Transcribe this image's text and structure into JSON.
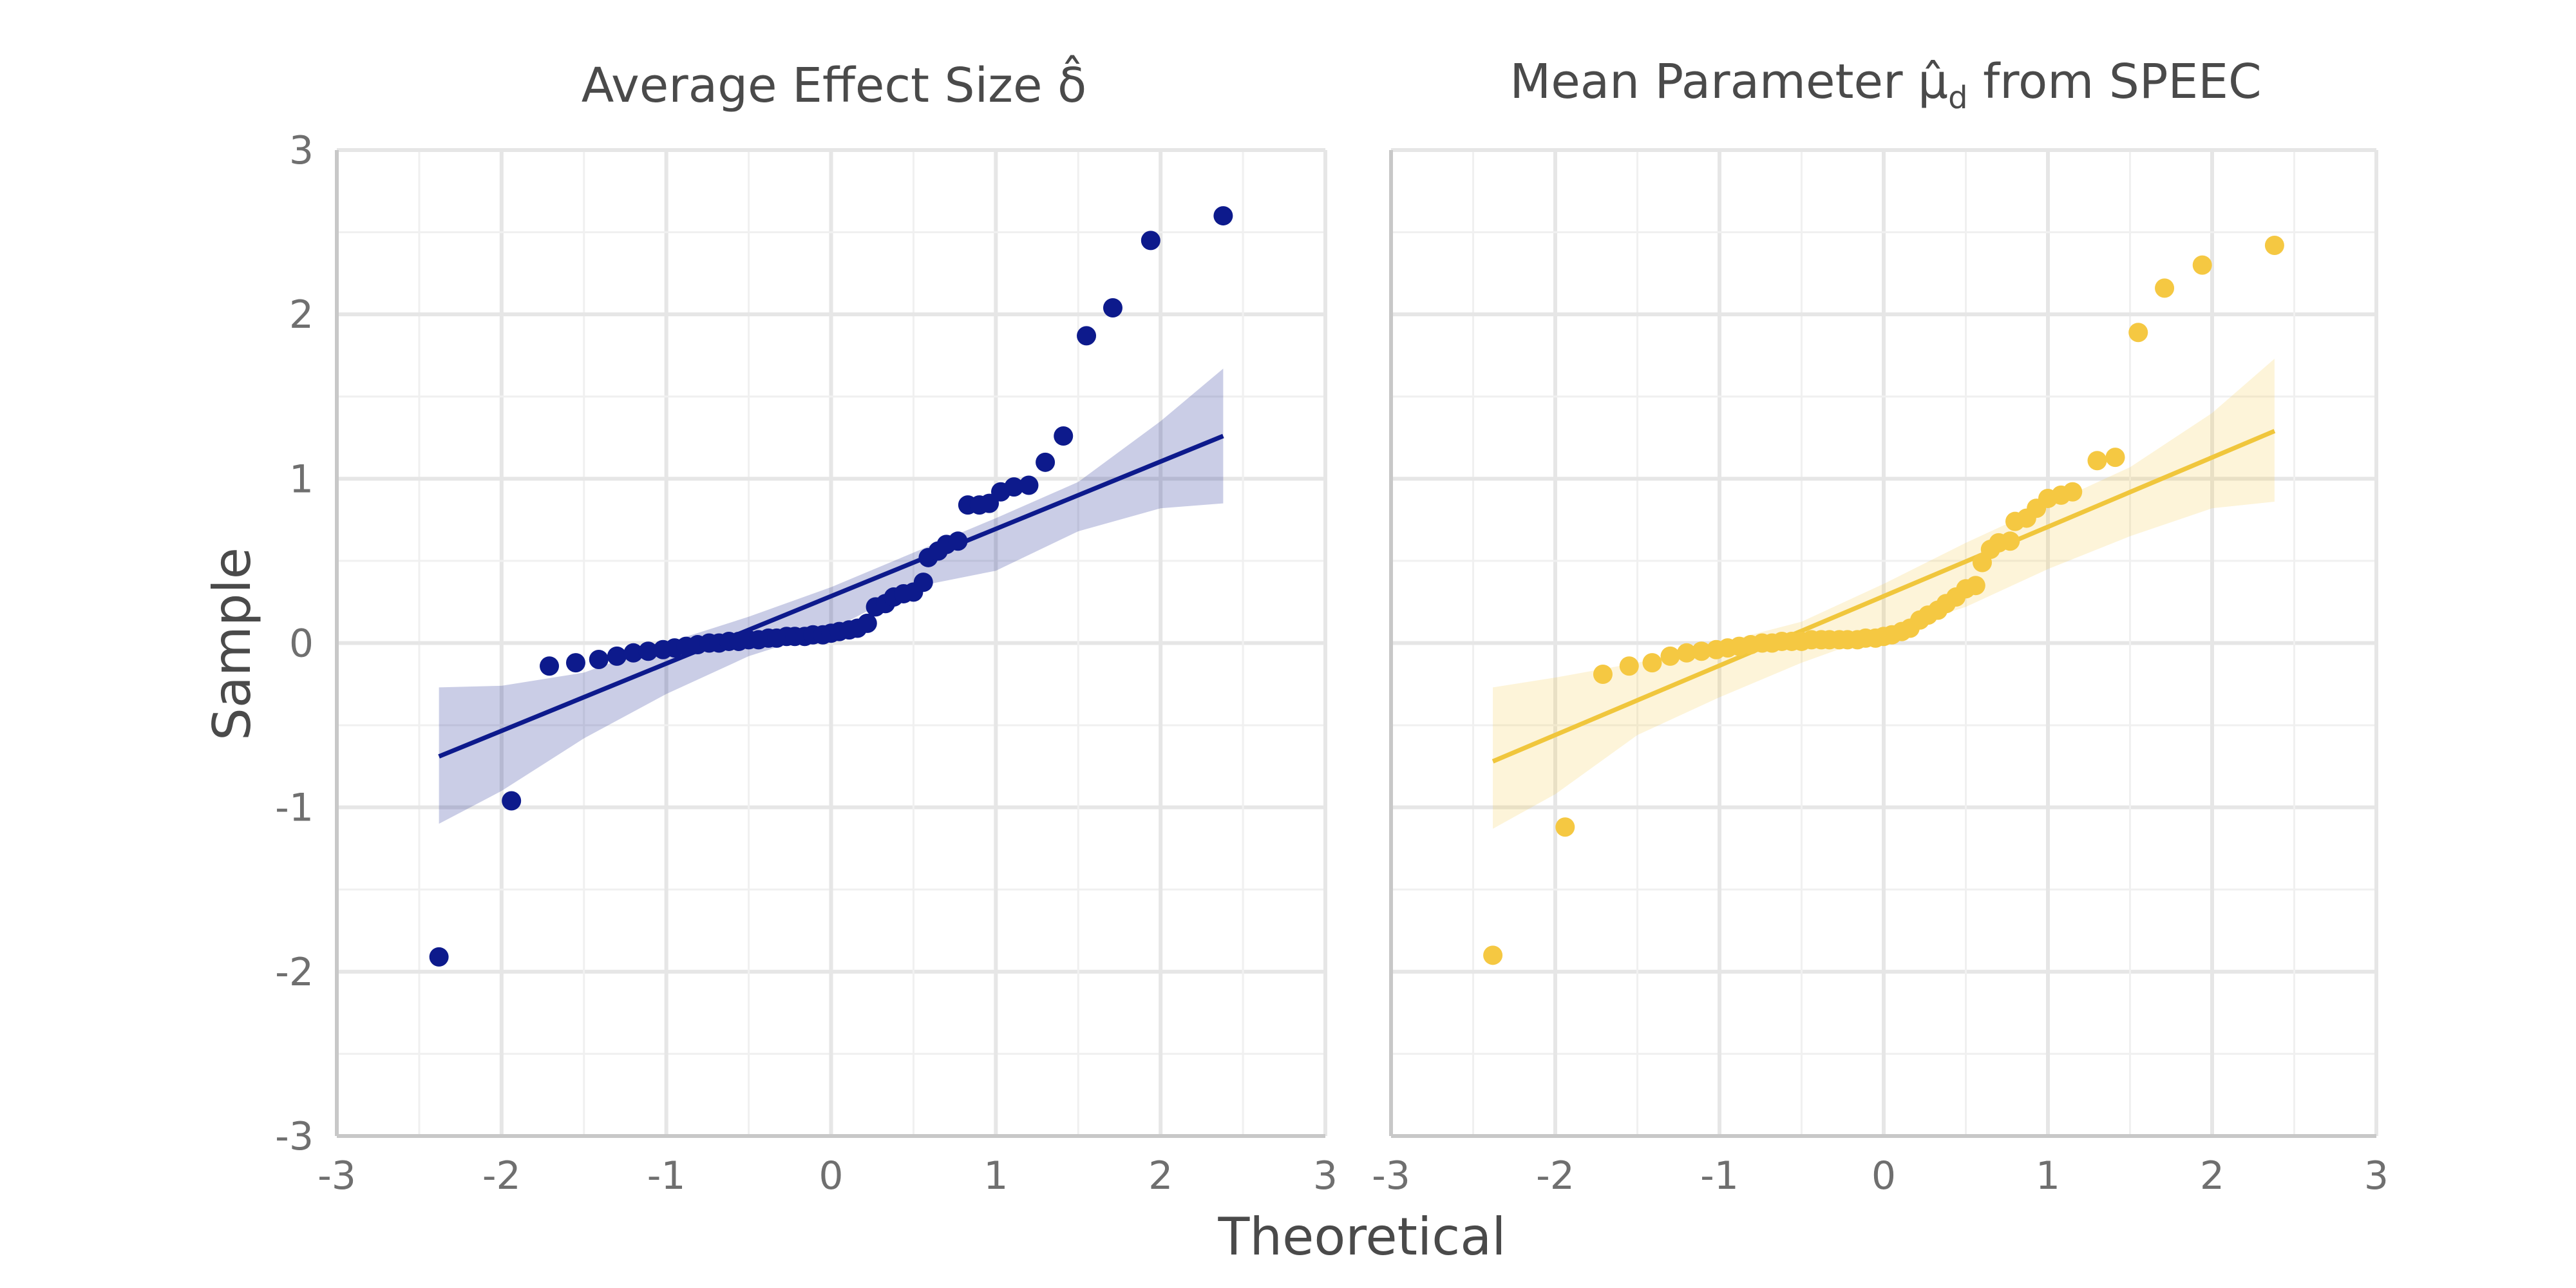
{
  "chart_data": [
    {
      "type": "scatter",
      "title": "Average Effect Size δ̂",
      "xlabel": "Theoretical",
      "ylabel": "Sample",
      "xlim": [
        -3,
        3
      ],
      "ylim": [
        -3,
        3
      ],
      "xticks": [
        "-3",
        "-2",
        "-1",
        "0",
        "1",
        "2",
        "3"
      ],
      "yticks": [
        "3",
        "2",
        "1",
        "0",
        "-1",
        "-2",
        "-3"
      ],
      "grid": true,
      "point_color": "#0d1a8c",
      "band_color": "#0d1a8c",
      "line_color": "#0d1a8c",
      "points": [
        {
          "x": -2.38,
          "y": -1.91
        },
        {
          "x": -1.94,
          "y": -0.96
        },
        {
          "x": -1.71,
          "y": -0.14
        },
        {
          "x": -1.55,
          "y": -0.12
        },
        {
          "x": -1.41,
          "y": -0.1
        },
        {
          "x": -1.3,
          "y": -0.08
        },
        {
          "x": -1.2,
          "y": -0.06
        },
        {
          "x": -1.11,
          "y": -0.05
        },
        {
          "x": -1.02,
          "y": -0.04
        },
        {
          "x": -0.95,
          "y": -0.03
        },
        {
          "x": -0.88,
          "y": -0.02
        },
        {
          "x": -0.81,
          "y": -0.01
        },
        {
          "x": -0.74,
          "y": 0.0
        },
        {
          "x": -0.68,
          "y": 0.0
        },
        {
          "x": -0.62,
          "y": 0.01
        },
        {
          "x": -0.56,
          "y": 0.01
        },
        {
          "x": -0.5,
          "y": 0.02
        },
        {
          "x": -0.44,
          "y": 0.02
        },
        {
          "x": -0.38,
          "y": 0.03
        },
        {
          "x": -0.33,
          "y": 0.03
        },
        {
          "x": -0.27,
          "y": 0.04
        },
        {
          "x": -0.22,
          "y": 0.04
        },
        {
          "x": -0.16,
          "y": 0.04
        },
        {
          "x": -0.11,
          "y": 0.05
        },
        {
          "x": -0.05,
          "y": 0.05
        },
        {
          "x": 0.0,
          "y": 0.06
        },
        {
          "x": 0.05,
          "y": 0.07
        },
        {
          "x": 0.11,
          "y": 0.08
        },
        {
          "x": 0.16,
          "y": 0.09
        },
        {
          "x": 0.22,
          "y": 0.12
        },
        {
          "x": 0.27,
          "y": 0.22
        },
        {
          "x": 0.33,
          "y": 0.24
        },
        {
          "x": 0.38,
          "y": 0.28
        },
        {
          "x": 0.44,
          "y": 0.3
        },
        {
          "x": 0.5,
          "y": 0.31
        },
        {
          "x": 0.56,
          "y": 0.37
        },
        {
          "x": 0.59,
          "y": 0.52
        },
        {
          "x": 0.65,
          "y": 0.56
        },
        {
          "x": 0.7,
          "y": 0.6
        },
        {
          "x": 0.77,
          "y": 0.62
        },
        {
          "x": 0.83,
          "y": 0.84
        },
        {
          "x": 0.9,
          "y": 0.84
        },
        {
          "x": 0.96,
          "y": 0.85
        },
        {
          "x": 1.03,
          "y": 0.92
        },
        {
          "x": 1.11,
          "y": 0.95
        },
        {
          "x": 1.2,
          "y": 0.96
        },
        {
          "x": 1.3,
          "y": 1.1
        },
        {
          "x": 1.41,
          "y": 1.26
        },
        {
          "x": 1.55,
          "y": 1.87
        },
        {
          "x": 1.71,
          "y": 2.04
        },
        {
          "x": 1.94,
          "y": 2.45
        },
        {
          "x": 2.38,
          "y": 2.6
        }
      ],
      "fit_line": [
        {
          "x": -2.38,
          "y": -0.69
        },
        {
          "x": 2.38,
          "y": 1.26
        }
      ],
      "band_upper": [
        {
          "x": -2.38,
          "y": -0.27
        },
        {
          "x": -2.0,
          "y": -0.26
        },
        {
          "x": -1.5,
          "y": -0.18
        },
        {
          "x": -1.0,
          "y": 0.0
        },
        {
          "x": -0.5,
          "y": 0.16
        },
        {
          "x": 0.0,
          "y": 0.34
        },
        {
          "x": 0.5,
          "y": 0.55
        },
        {
          "x": 1.0,
          "y": 0.76
        },
        {
          "x": 1.5,
          "y": 0.98
        },
        {
          "x": 2.0,
          "y": 1.35
        },
        {
          "x": 2.38,
          "y": 1.67
        }
      ],
      "band_lower": [
        {
          "x": -2.38,
          "y": -1.1
        },
        {
          "x": -2.0,
          "y": -0.9
        },
        {
          "x": -1.5,
          "y": -0.58
        },
        {
          "x": -1.0,
          "y": -0.31
        },
        {
          "x": -0.5,
          "y": -0.08
        },
        {
          "x": 0.0,
          "y": 0.08
        },
        {
          "x": 0.5,
          "y": 0.34
        },
        {
          "x": 1.0,
          "y": 0.44
        },
        {
          "x": 1.5,
          "y": 0.68
        },
        {
          "x": 2.0,
          "y": 0.82
        },
        {
          "x": 2.38,
          "y": 0.85
        }
      ]
    },
    {
      "type": "scatter",
      "title": "Mean Parameter μ̂",
      "title_subscript": "d",
      "title_suffix": "from SPEEC",
      "xlabel": "Theoretical",
      "ylabel": "Sample",
      "xlim": [
        -3,
        3
      ],
      "ylim": [
        -3,
        3
      ],
      "xticks": [
        "-3",
        "-2",
        "-1",
        "0",
        "1",
        "2",
        "3"
      ],
      "yticks": [
        "3",
        "2",
        "1",
        "0",
        "-1",
        "-2",
        "-3"
      ],
      "grid": true,
      "point_color": "#f5c842",
      "band_color": "#f5c842",
      "line_color": "#f0c63c",
      "points": [
        {
          "x": -2.38,
          "y": -1.9
        },
        {
          "x": -1.94,
          "y": -1.12
        },
        {
          "x": -1.71,
          "y": -0.19
        },
        {
          "x": -1.55,
          "y": -0.14
        },
        {
          "x": -1.41,
          "y": -0.12
        },
        {
          "x": -1.3,
          "y": -0.08
        },
        {
          "x": -1.2,
          "y": -0.06
        },
        {
          "x": -1.11,
          "y": -0.05
        },
        {
          "x": -1.02,
          "y": -0.04
        },
        {
          "x": -0.95,
          "y": -0.03
        },
        {
          "x": -0.88,
          "y": -0.02
        },
        {
          "x": -0.81,
          "y": -0.01
        },
        {
          "x": -0.74,
          "y": 0.0
        },
        {
          "x": -0.68,
          "y": 0.0
        },
        {
          "x": -0.62,
          "y": 0.01
        },
        {
          "x": -0.56,
          "y": 0.01
        },
        {
          "x": -0.5,
          "y": 0.01
        },
        {
          "x": -0.44,
          "y": 0.02
        },
        {
          "x": -0.38,
          "y": 0.02
        },
        {
          "x": -0.33,
          "y": 0.02
        },
        {
          "x": -0.27,
          "y": 0.02
        },
        {
          "x": -0.22,
          "y": 0.02
        },
        {
          "x": -0.16,
          "y": 0.02
        },
        {
          "x": -0.11,
          "y": 0.03
        },
        {
          "x": -0.05,
          "y": 0.03
        },
        {
          "x": 0.0,
          "y": 0.04
        },
        {
          "x": 0.05,
          "y": 0.05
        },
        {
          "x": 0.11,
          "y": 0.07
        },
        {
          "x": 0.16,
          "y": 0.09
        },
        {
          "x": 0.22,
          "y": 0.14
        },
        {
          "x": 0.27,
          "y": 0.17
        },
        {
          "x": 0.33,
          "y": 0.2
        },
        {
          "x": 0.38,
          "y": 0.24
        },
        {
          "x": 0.44,
          "y": 0.28
        },
        {
          "x": 0.5,
          "y": 0.33
        },
        {
          "x": 0.56,
          "y": 0.35
        },
        {
          "x": 0.6,
          "y": 0.49
        },
        {
          "x": 0.65,
          "y": 0.57
        },
        {
          "x": 0.7,
          "y": 0.61
        },
        {
          "x": 0.77,
          "y": 0.62
        },
        {
          "x": 0.8,
          "y": 0.74
        },
        {
          "x": 0.87,
          "y": 0.76
        },
        {
          "x": 0.93,
          "y": 0.82
        },
        {
          "x": 1.0,
          "y": 0.88
        },
        {
          "x": 1.08,
          "y": 0.9
        },
        {
          "x": 1.15,
          "y": 0.92
        },
        {
          "x": 1.3,
          "y": 1.11
        },
        {
          "x": 1.41,
          "y": 1.13
        },
        {
          "x": 1.55,
          "y": 1.89
        },
        {
          "x": 1.71,
          "y": 2.16
        },
        {
          "x": 1.94,
          "y": 2.3
        },
        {
          "x": 2.38,
          "y": 2.42
        }
      ],
      "fit_line": [
        {
          "x": -2.38,
          "y": -0.72
        },
        {
          "x": 2.38,
          "y": 1.29
        }
      ],
      "band_upper": [
        {
          "x": -2.38,
          "y": -0.27
        },
        {
          "x": -2.0,
          "y": -0.21
        },
        {
          "x": -1.5,
          "y": -0.12
        },
        {
          "x": -1.0,
          "y": 0.0
        },
        {
          "x": -0.5,
          "y": 0.13
        },
        {
          "x": 0.0,
          "y": 0.36
        },
        {
          "x": 0.5,
          "y": 0.61
        },
        {
          "x": 1.0,
          "y": 0.84
        },
        {
          "x": 1.5,
          "y": 1.07
        },
        {
          "x": 2.0,
          "y": 1.4
        },
        {
          "x": 2.38,
          "y": 1.73
        }
      ],
      "band_lower": [
        {
          "x": -2.38,
          "y": -1.13
        },
        {
          "x": -2.0,
          "y": -0.92
        },
        {
          "x": -1.5,
          "y": -0.56
        },
        {
          "x": -1.0,
          "y": -0.33
        },
        {
          "x": -0.5,
          "y": -0.12
        },
        {
          "x": 0.0,
          "y": 0.06
        },
        {
          "x": 0.5,
          "y": 0.22
        },
        {
          "x": 1.0,
          "y": 0.45
        },
        {
          "x": 1.5,
          "y": 0.65
        },
        {
          "x": 2.0,
          "y": 0.82
        },
        {
          "x": 2.38,
          "y": 0.86
        }
      ]
    }
  ],
  "shared": {
    "xlabel": "Theoretical",
    "ylabel": "Sample"
  }
}
